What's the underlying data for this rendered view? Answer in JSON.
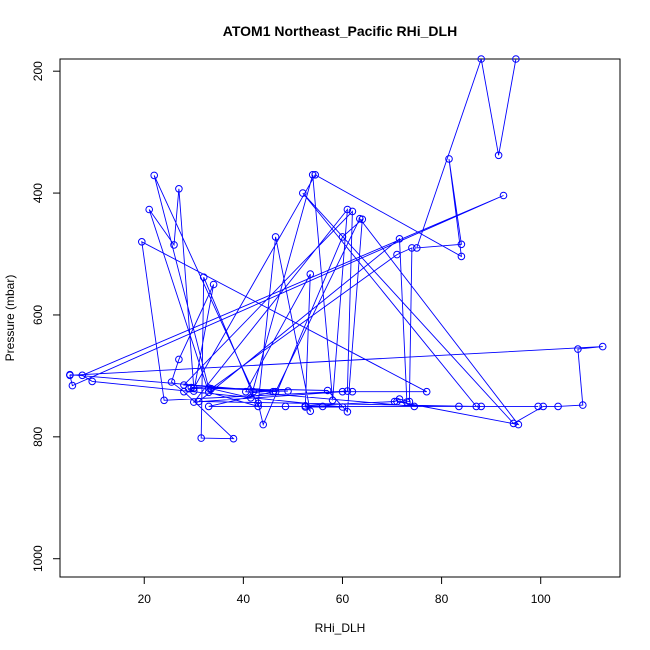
{
  "chart_data": {
    "type": "line",
    "title": "ATOM1 Northeast_Pacific RHi_DLH",
    "xlabel": "RHi_DLH",
    "ylabel": "Pressure (mbar)",
    "xlim": [
      3,
      116
    ],
    "ylim": [
      1030,
      180
    ],
    "y_reversed": true,
    "x_ticks": [
      20,
      40,
      60,
      80,
      100
    ],
    "y_ticks": [
      200,
      400,
      600,
      800,
      1000
    ],
    "grid": false,
    "legend": "none",
    "series_color": "#0000ff",
    "marker": "open-circle",
    "points": [
      [
        95,
        180
      ],
      [
        91.5,
        338
      ],
      [
        88,
        180
      ],
      [
        75,
        490
      ],
      [
        84,
        484
      ],
      [
        81.5,
        344
      ],
      [
        84,
        504
      ],
      [
        54.5,
        370
      ],
      [
        30,
        720
      ],
      [
        27,
        393
      ],
      [
        26,
        485
      ],
      [
        21,
        427
      ],
      [
        33,
        727
      ],
      [
        43,
        750
      ],
      [
        32,
        538
      ],
      [
        31.5,
        802
      ],
      [
        38,
        803
      ],
      [
        28,
        726
      ],
      [
        25.5,
        710
      ],
      [
        27,
        673
      ],
      [
        34,
        550
      ],
      [
        30,
        725
      ],
      [
        29,
        721
      ],
      [
        33,
        720
      ],
      [
        22,
        371
      ],
      [
        42,
        726
      ],
      [
        49,
        725
      ],
      [
        29.5,
        719
      ],
      [
        57,
        724
      ],
      [
        61,
        759
      ],
      [
        64,
        443
      ],
      [
        60,
        472
      ],
      [
        44,
        780
      ],
      [
        43,
        745
      ],
      [
        46.5,
        472
      ],
      [
        53.5,
        758
      ],
      [
        52.5,
        749
      ],
      [
        70.5,
        742
      ],
      [
        71.5,
        738
      ],
      [
        73.5,
        742
      ],
      [
        74,
        490
      ],
      [
        71,
        501
      ],
      [
        33.5,
        721
      ],
      [
        41.5,
        736
      ],
      [
        54,
        370
      ],
      [
        58,
        740
      ],
      [
        61,
        427
      ],
      [
        30,
        743
      ],
      [
        60,
        726
      ],
      [
        62,
        726
      ],
      [
        77,
        726
      ],
      [
        19.5,
        480
      ],
      [
        24,
        740
      ],
      [
        61,
        725
      ],
      [
        62,
        430
      ],
      [
        28,
        715
      ],
      [
        46.5,
        726
      ],
      [
        63.5,
        442
      ],
      [
        95.5,
        780
      ],
      [
        71,
        742
      ],
      [
        73,
        743
      ],
      [
        71.5,
        475
      ],
      [
        31,
        742
      ],
      [
        87,
        750
      ],
      [
        52,
        400
      ],
      [
        94.5,
        778
      ],
      [
        100.5,
        750
      ],
      [
        103.5,
        750
      ],
      [
        108.5,
        748
      ],
      [
        107.5,
        656
      ],
      [
        112.5,
        652
      ],
      [
        5,
        699
      ],
      [
        5.5,
        716
      ],
      [
        92.5,
        404
      ],
      [
        7.5,
        699
      ],
      [
        9.5,
        709
      ],
      [
        60,
        751
      ],
      [
        52.5,
        751
      ],
      [
        53.5,
        533
      ],
      [
        40.5,
        726
      ],
      [
        74.5,
        750
      ],
      [
        88,
        750
      ],
      [
        99.5,
        750
      ],
      [
        48.5,
        750
      ],
      [
        83.5,
        750
      ],
      [
        56,
        750
      ],
      [
        33,
        750
      ],
      [
        46,
        726
      ],
      [
        5,
        698
      ]
    ]
  }
}
